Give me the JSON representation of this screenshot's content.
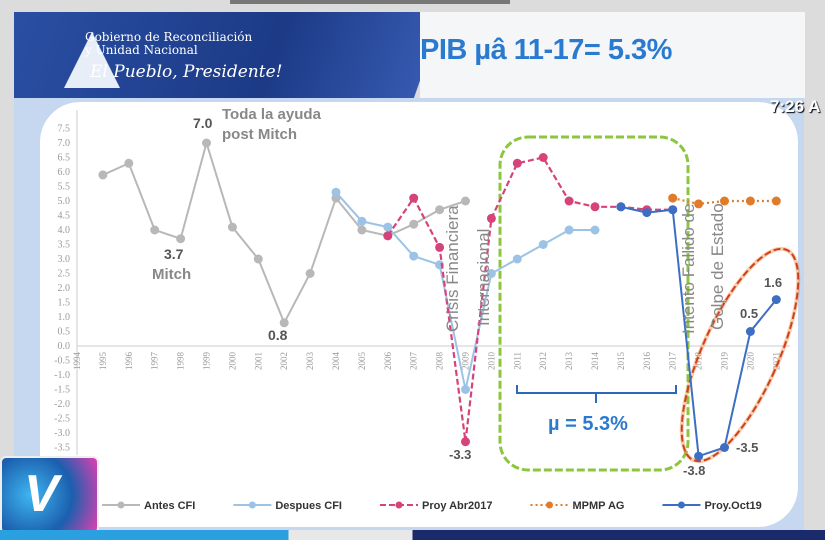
{
  "header": {
    "gov_line1": "Gobierno de Reconciliación",
    "gov_line2": "y Unidad Nacional",
    "slogan": "El Pueblo, Presidente!",
    "title": "PIB µâ 11-17= 5.3%",
    "clock": "7:26 A"
  },
  "chart_data": {
    "type": "line",
    "title": "",
    "xlabel": "",
    "ylabel": "",
    "ylim": [
      -3.5,
      7.5
    ],
    "yticks": [
      "-3.5",
      "-3.0",
      "-2.5",
      "-2.0",
      "-1.5",
      "-1.0",
      "-0.5",
      "0.0",
      "0.5",
      "1.0",
      "1.5",
      "2.0",
      "2.5",
      "3.0",
      "3.5",
      "4.0",
      "4.5",
      "5.0",
      "5.5",
      "6.0",
      "6.5",
      "7.0",
      "7.5"
    ],
    "categories": [
      "1994",
      "1995",
      "1996",
      "1997",
      "1998",
      "1999",
      "2000",
      "2001",
      "2002",
      "2003",
      "2004",
      "2005",
      "2006",
      "2007",
      "2008",
      "2009",
      "2010",
      "2011",
      "2012",
      "2013",
      "2014",
      "2015",
      "2016",
      "2017",
      "2018",
      "2019",
      "2020",
      "2021"
    ],
    "grid": false,
    "legend": "bottom",
    "series": [
      {
        "name": "Antes CFI",
        "color": "#b8b8b8",
        "style": "solid",
        "points": [
          [
            1995,
            5.9
          ],
          [
            1996,
            6.3
          ],
          [
            1997,
            4.0
          ],
          [
            1998,
            3.7
          ],
          [
            1999,
            7.0
          ],
          [
            2000,
            4.1
          ],
          [
            2001,
            3.0
          ],
          [
            2002,
            0.8
          ],
          [
            2003,
            2.5
          ],
          [
            2004,
            5.1
          ],
          [
            2005,
            4.0
          ],
          [
            2006,
            3.8
          ],
          [
            2007,
            4.2
          ],
          [
            2008,
            4.7
          ],
          [
            2009,
            5.0
          ]
        ]
      },
      {
        "name": "Despues CFI",
        "color": "#9cc3e6",
        "style": "solid",
        "points": [
          [
            2004,
            5.3
          ],
          [
            2005,
            4.3
          ],
          [
            2006,
            4.1
          ],
          [
            2007,
            3.1
          ],
          [
            2008,
            2.8
          ],
          [
            2009,
            -1.5
          ],
          [
            2010,
            2.5
          ],
          [
            2011,
            3.0
          ],
          [
            2012,
            3.5
          ],
          [
            2013,
            4.0
          ],
          [
            2014,
            4.0
          ]
        ]
      },
      {
        "name": "Proy Abr2017",
        "color": "#d6427a",
        "style": "dashed",
        "points": [
          [
            2006,
            3.8
          ],
          [
            2007,
            5.1
          ],
          [
            2008,
            3.4
          ],
          [
            2009,
            -3.3
          ],
          [
            2010,
            4.4
          ],
          [
            2011,
            6.3
          ],
          [
            2012,
            6.5
          ],
          [
            2013,
            5.0
          ],
          [
            2014,
            4.8
          ],
          [
            2015,
            4.8
          ],
          [
            2016,
            4.7
          ],
          [
            2017,
            4.7
          ]
        ]
      },
      {
        "name": "MPMP AG",
        "color": "#e07b2a",
        "style": "dotted",
        "points": [
          [
            2017,
            5.1
          ],
          [
            2018,
            4.9
          ],
          [
            2019,
            5.0
          ],
          [
            2020,
            5.0
          ],
          [
            2021,
            5.0
          ]
        ]
      },
      {
        "name": "Proy.Oct19",
        "color": "#3c6fc4",
        "style": "solid",
        "points": [
          [
            2015,
            4.8
          ],
          [
            2016,
            4.6
          ],
          [
            2017,
            4.7
          ],
          [
            2018,
            -3.8
          ],
          [
            2019,
            -3.5
          ],
          [
            2020,
            0.5
          ],
          [
            2021,
            1.6
          ]
        ]
      }
    ],
    "annotations": {
      "peak_value": "7.0",
      "aid_line1": "Toda la ayuda",
      "aid_line2": "post Mitch",
      "mitch_value": "3.7",
      "mitch_label": "Mitch",
      "low_2002": "0.8",
      "low_2009": "-3.3",
      "crisis_line1": "Crisis Financiera",
      "crisis_line2": "Internacional",
      "coup_line1": "Intento Fallido de",
      "coup_line2": "Golpe de Estado",
      "mean_label": "µ = 5.3%",
      "v2018": "-3.8",
      "v2019": "-3.5",
      "v2020": "0.5",
      "v2021": "1.6"
    }
  }
}
